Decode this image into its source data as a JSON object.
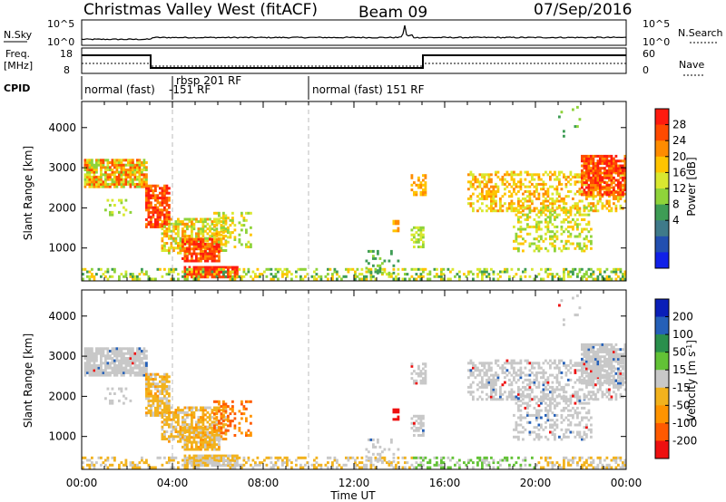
{
  "header": {
    "title": "Christmas Valley West (fitACF)",
    "beam": "Beam 09",
    "date": "07/Sep/2016"
  },
  "nsky": {
    "label": "N.Sky",
    "ticks_left": [
      "10^5",
      "10^0"
    ],
    "ticks_right": [
      "10^5",
      "10^0"
    ],
    "right_label": "N.Search"
  },
  "freq": {
    "label_line1": "Freq.",
    "label_line2": "[MHz]",
    "ticks_left": [
      "18",
      "8"
    ],
    "ticks_right": [
      "60",
      "0"
    ],
    "right_label": "Nave"
  },
  "cpid": {
    "label": "CPID",
    "segments": [
      {
        "text": "normal (fast)",
        "start_h": 0
      },
      {
        "text": "-151 RF",
        "start_h": 3.4
      },
      {
        "text": "rbsp 201 RF",
        "start_h": 4.0
      },
      {
        "text": "normal (fast) 151 RF",
        "start_h": 10.0
      }
    ]
  },
  "chart_data": [
    {
      "type": "heatmap",
      "name": "power",
      "ylabel": "Slant Range [km]",
      "ylim": [
        180,
        4650
      ],
      "yticks": [
        "1000",
        "2000",
        "3000",
        "4000"
      ],
      "colorbar": {
        "label": "Power [dB]",
        "ticks": [
          "28",
          "24",
          "20",
          "16",
          "12",
          "8",
          "4"
        ],
        "colors": [
          "#ff1b0f",
          "#ff4a00",
          "#ff8c00",
          "#ffc400",
          "#d9e830",
          "#8fd33a",
          "#3e9c55",
          "#3f7a8a",
          "#224fb0",
          "#1020e8"
        ]
      }
    },
    {
      "type": "heatmap",
      "name": "velocity",
      "ylabel": "Slant Range [km]",
      "ylim": [
        180,
        4650
      ],
      "yticks": [
        "1000",
        "2000",
        "3000",
        "4000"
      ],
      "colorbar": {
        "label": "Velocity [m s^-1]",
        "ticks": [
          "200",
          "100",
          "50",
          "15",
          "-15",
          "-50",
          "-100",
          "-200"
        ],
        "colors": [
          "#0a1fb8",
          "#2560b8",
          "#2a8f4c",
          "#62c236",
          "#c8c8c8",
          "#f2b21d",
          "#ff9400",
          "#ff5a00",
          "#ee1010"
        ]
      }
    }
  ],
  "xaxis": {
    "label": "Time UT",
    "ticks": [
      "00:00",
      "04:00",
      "08:00",
      "12:00",
      "16:00",
      "20:00",
      "00:00"
    ]
  }
}
